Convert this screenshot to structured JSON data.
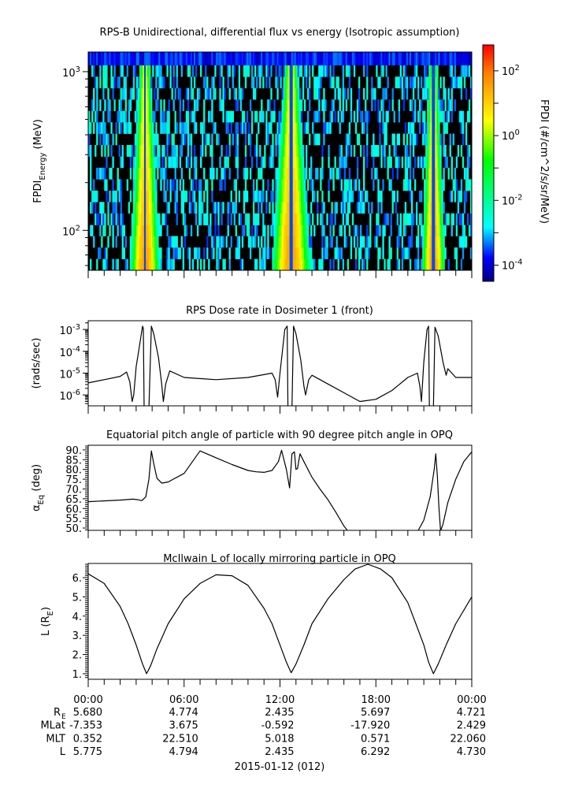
{
  "time_axis": {
    "xlim_hours": [
      0,
      24
    ],
    "major_tick_hours": [
      0,
      6,
      12,
      18,
      24
    ],
    "minor_tick_step_hours": 1,
    "labels": [
      "00:00",
      "06:00",
      "12:00",
      "18:00",
      "00:00"
    ]
  },
  "ephemeris": {
    "rows": [
      {
        "label": "R",
        "sub": "E",
        "values": [
          "5.680",
          "4.774",
          "2.435",
          "5.697",
          "4.721"
        ]
      },
      {
        "label": "MLat",
        "sub": "",
        "values": [
          "-7.353",
          "3.675",
          "-0.592",
          "-17.920",
          "2.429"
        ]
      },
      {
        "label": "MLT",
        "sub": "",
        "values": [
          "0.352",
          "22.510",
          "5.018",
          "0.571",
          "22.060"
        ]
      },
      {
        "label": "L",
        "sub": "",
        "values": [
          "5.775",
          "4.794",
          "2.435",
          "6.292",
          "4.730"
        ]
      }
    ]
  },
  "date_label": "2015-01-12 (012)",
  "chart_data": [
    {
      "type": "heatmap",
      "title": "RPS-B  Unidirectional, differential flux vs energy (Isotropic assumption)",
      "ylabel": {
        "main": "FPDI",
        "sub": "Energy",
        "unit": " (MeV)"
      },
      "yscale": "log",
      "ylim": [
        56,
        1330
      ],
      "yticks": [
        {
          "value": 1000,
          "base": "10",
          "exp": "3"
        },
        {
          "value": 100,
          "base": "10",
          "exp": "2"
        }
      ],
      "energy_channel_edges_mev": [
        56,
        66,
        78,
        92,
        108,
        128,
        151,
        178,
        210,
        248,
        292,
        345,
        407,
        480,
        566,
        668,
        788,
        930,
        1100,
        1330
      ],
      "time_step_hours": 0.1,
      "passes": [
        {
          "center_hour": 3.55,
          "half_width_low_energy_hours": 0.95,
          "half_width_high_energy_hours": 0.37,
          "peak_log10_flux": 1.6
        },
        {
          "center_hour": 12.7,
          "half_width_low_energy_hours": 1.25,
          "half_width_high_energy_hours": 0.45,
          "peak_log10_flux": 1.6
        },
        {
          "center_hour": 21.6,
          "half_width_low_energy_hours": 0.75,
          "half_width_high_energy_hours": 0.3,
          "peak_log10_flux": 1.6
        }
      ],
      "background": {
        "fill_fraction": 0.4,
        "log10_flux_range": [
          -3.6,
          -2.2
        ],
        "top_channel_log10_range": [
          -4.2,
          -3.3
        ],
        "empty_color": "#000000"
      },
      "colorbar": {
        "label": "FPDI (#/cm^2/s/sr/MeV)",
        "range_log10": [
          -4.5,
          2.8
        ],
        "ticks": [
          {
            "value": 2,
            "base": "10",
            "exp": "2"
          },
          {
            "value": 0,
            "base": "10",
            "exp": "0"
          },
          {
            "value": -2,
            "base": "10",
            "exp": "-2"
          },
          {
            "value": -4,
            "base": "10",
            "exp": "-4"
          }
        ],
        "minor_ticks": [
          -3,
          -1,
          1
        ],
        "colormap_stops": [
          [
            0,
            "#000080"
          ],
          [
            0.1,
            "#0000ff"
          ],
          [
            0.23,
            "#00ffff"
          ],
          [
            0.51,
            "#00ff00"
          ],
          [
            0.68,
            "#ffff00"
          ],
          [
            0.88,
            "#ff8000"
          ],
          [
            1,
            "#ff0000"
          ]
        ]
      }
    },
    {
      "type": "line",
      "title": "RPS  Dose rate in Dosimeter 1 (front)",
      "ylabel": {
        "main": "(rads/sec)",
        "sub": "",
        "unit": ""
      },
      "yscale": "log",
      "ylim_log10": [
        -6.5,
        -2.6
      ],
      "yticks": [
        {
          "value": -3,
          "base": "10",
          "exp": "-3"
        },
        {
          "value": -4,
          "base": "10",
          "exp": "-4"
        },
        {
          "value": -5,
          "base": "10",
          "exp": "-5"
        },
        {
          "value": -6,
          "base": "10",
          "exp": "-6"
        }
      ],
      "points_hour_log10": [
        [
          0,
          -5.45
        ],
        [
          1,
          -5.3
        ],
        [
          2,
          -5.15
        ],
        [
          2.4,
          -4.95
        ],
        [
          2.6,
          -5.4
        ],
        [
          2.75,
          -6.3
        ],
        [
          2.85,
          -6.0
        ],
        [
          3.0,
          -4.7
        ],
        [
          3.2,
          -3.8
        ],
        [
          3.4,
          -2.85
        ],
        [
          3.45,
          -2.95
        ],
        [
          3.5,
          -6.6
        ],
        [
          3.8,
          -6.6
        ],
        [
          3.95,
          -2.85
        ],
        [
          4.1,
          -3.2
        ],
        [
          4.4,
          -4.3
        ],
        [
          4.6,
          -5.5
        ],
        [
          4.7,
          -6.3
        ],
        [
          4.85,
          -5.5
        ],
        [
          5.1,
          -4.9
        ],
        [
          6,
          -5.2
        ],
        [
          8,
          -5.3
        ],
        [
          10,
          -5.2
        ],
        [
          11.5,
          -5.0
        ],
        [
          11.7,
          -5.3
        ],
        [
          11.85,
          -6.1
        ],
        [
          12.0,
          -5.0
        ],
        [
          12.3,
          -3.0
        ],
        [
          12.45,
          -2.85
        ],
        [
          12.5,
          -6.6
        ],
        [
          12.75,
          -6.6
        ],
        [
          12.85,
          -2.85
        ],
        [
          13.0,
          -3.2
        ],
        [
          13.3,
          -4.4
        ],
        [
          13.5,
          -5.6
        ],
        [
          13.6,
          -6.0
        ],
        [
          13.8,
          -5.3
        ],
        [
          14,
          -5.1
        ],
        [
          15,
          -5.5
        ],
        [
          16,
          -5.9
        ],
        [
          17,
          -6.3
        ],
        [
          18,
          -6.2
        ],
        [
          19,
          -5.8
        ],
        [
          19.5,
          -5.5
        ],
        [
          20,
          -5.2
        ],
        [
          20.6,
          -5.0
        ],
        [
          20.75,
          -5.6
        ],
        [
          20.85,
          -6.3
        ],
        [
          21.0,
          -4.5
        ],
        [
          21.2,
          -3.0
        ],
        [
          21.3,
          -2.85
        ],
        [
          21.35,
          -6.6
        ],
        [
          21.6,
          -6.6
        ],
        [
          21.7,
          -2.9
        ],
        [
          21.9,
          -3.3
        ],
        [
          22.2,
          -4.5
        ],
        [
          22.4,
          -5.1
        ],
        [
          22.5,
          -4.8
        ],
        [
          23,
          -5.2
        ],
        [
          24,
          -5.2
        ]
      ]
    },
    {
      "type": "line",
      "title": "Equatorial pitch angle of particle with 90 degree pitch angle in OPQ",
      "ylabel": {
        "main": "α",
        "sub": "Eq",
        "unit": " (deg)"
      },
      "yscale": "linear",
      "ylim": [
        48.8,
        92.4
      ],
      "yticks": [
        {
          "value": 90,
          "label": "90."
        },
        {
          "value": 85,
          "label": "85."
        },
        {
          "value": 80,
          "label": "80."
        },
        {
          "value": 75,
          "label": "75."
        },
        {
          "value": 70,
          "label": "70."
        },
        {
          "value": 65,
          "label": "65."
        },
        {
          "value": 60,
          "label": "60."
        },
        {
          "value": 55,
          "label": "55."
        },
        {
          "value": 50,
          "label": "50."
        }
      ],
      "minor_tick_step": 1,
      "segments": [
        [
          [
            0,
            63.5
          ],
          [
            2,
            64.3
          ],
          [
            2.8,
            64.8
          ],
          [
            3.1,
            64.5
          ],
          [
            3.35,
            64
          ],
          [
            3.6,
            66
          ],
          [
            3.8,
            75
          ],
          [
            3.95,
            89.5
          ],
          [
            4.1,
            83
          ],
          [
            4.3,
            75.5
          ],
          [
            4.6,
            73
          ],
          [
            5,
            73.6
          ],
          [
            6,
            78
          ],
          [
            7,
            89.5
          ],
          [
            8,
            86
          ],
          [
            9,
            82.5
          ],
          [
            10,
            79.5
          ],
          [
            10.5,
            78.8
          ],
          [
            11,
            78.5
          ],
          [
            11.5,
            79.5
          ],
          [
            11.9,
            84
          ],
          [
            12.1,
            89.8
          ],
          [
            12.4,
            80
          ],
          [
            12.6,
            70.5
          ],
          [
            12.75,
            88
          ],
          [
            12.9,
            89
          ],
          [
            13.0,
            80
          ],
          [
            13.1,
            80.5
          ],
          [
            13.25,
            88
          ],
          [
            13.5,
            84
          ],
          [
            14,
            76
          ],
          [
            14.5,
            70
          ],
          [
            15,
            64.5
          ],
          [
            15.5,
            58
          ],
          [
            16,
            51
          ],
          [
            16.2,
            49
          ]
        ],
        [
          [
            20.6,
            48
          ],
          [
            21.0,
            54
          ],
          [
            21.4,
            66
          ],
          [
            21.65,
            80
          ],
          [
            21.75,
            88
          ],
          [
            21.85,
            76
          ],
          [
            21.95,
            60
          ],
          [
            22.05,
            48.5
          ],
          [
            22.2,
            52
          ],
          [
            22.5,
            63
          ],
          [
            23,
            75
          ],
          [
            23.5,
            84
          ],
          [
            24,
            89
          ]
        ]
      ]
    },
    {
      "type": "line",
      "title": "McIlwain L of locally mirroring particle in OPQ",
      "ylabel": {
        "main": "L (R",
        "sub": "E",
        "unit": ")"
      },
      "yscale": "linear",
      "ylim": [
        0.71,
        6.74
      ],
      "yticks": [
        {
          "value": 6,
          "label": "6."
        },
        {
          "value": 5,
          "label": "5."
        },
        {
          "value": 4,
          "label": "4."
        },
        {
          "value": 3,
          "label": "3."
        },
        {
          "value": 2,
          "label": "2."
        },
        {
          "value": 1,
          "label": "1."
        }
      ],
      "minor_tick_step": 0.1,
      "segments": [
        [
          [
            0,
            6.2
          ],
          [
            1,
            5.7
          ],
          [
            2,
            4.5
          ],
          [
            2.5,
            3.6
          ],
          [
            3,
            2.5
          ],
          [
            3.4,
            1.5
          ],
          [
            3.65,
            1.0
          ],
          [
            3.9,
            1.4
          ],
          [
            4.3,
            2.3
          ],
          [
            5,
            3.6
          ],
          [
            6,
            4.9
          ],
          [
            7,
            5.7
          ],
          [
            8,
            6.15
          ],
          [
            9,
            6.1
          ],
          [
            10,
            5.6
          ],
          [
            11,
            4.4
          ],
          [
            11.5,
            3.6
          ],
          [
            12,
            2.5
          ],
          [
            12.4,
            1.6
          ],
          [
            12.7,
            1.05
          ],
          [
            13,
            1.5
          ],
          [
            13.5,
            2.5
          ],
          [
            14,
            3.6
          ],
          [
            15,
            4.9
          ],
          [
            16,
            5.9
          ],
          [
            16.7,
            6.45
          ],
          [
            17.5,
            6.7
          ],
          [
            18.3,
            6.45
          ],
          [
            19,
            6.0
          ],
          [
            20,
            4.7
          ],
          [
            20.5,
            3.6
          ],
          [
            21,
            2.5
          ],
          [
            21.3,
            1.6
          ],
          [
            21.6,
            1.0
          ],
          [
            21.9,
            1.5
          ],
          [
            22.4,
            2.5
          ],
          [
            23,
            3.6
          ],
          [
            24,
            5.0
          ]
        ]
      ]
    }
  ]
}
